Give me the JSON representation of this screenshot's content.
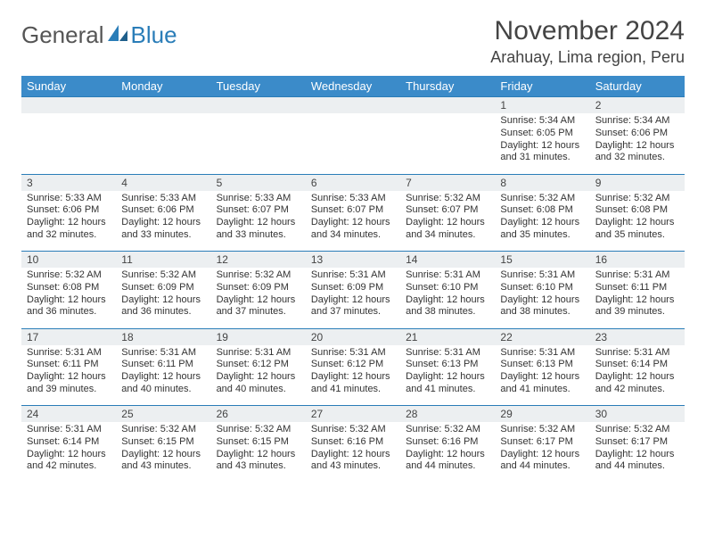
{
  "logo": {
    "text1": "General",
    "text2": "Blue"
  },
  "title": "November 2024",
  "location": "Arahuay, Lima region, Peru",
  "colors": {
    "header_bg": "#3b8bc9",
    "header_text": "#ffffff",
    "daynum_bg": "#eceff1",
    "border": "#2a7db8",
    "text": "#333333",
    "title_text": "#444444"
  },
  "weekdays": [
    "Sunday",
    "Monday",
    "Tuesday",
    "Wednesday",
    "Thursday",
    "Friday",
    "Saturday"
  ],
  "weeks": [
    [
      null,
      null,
      null,
      null,
      null,
      {
        "n": "1",
        "sr": "5:34 AM",
        "ss": "6:05 PM",
        "dl": "12 hours and 31 minutes."
      },
      {
        "n": "2",
        "sr": "5:34 AM",
        "ss": "6:06 PM",
        "dl": "12 hours and 32 minutes."
      }
    ],
    [
      {
        "n": "3",
        "sr": "5:33 AM",
        "ss": "6:06 PM",
        "dl": "12 hours and 32 minutes."
      },
      {
        "n": "4",
        "sr": "5:33 AM",
        "ss": "6:06 PM",
        "dl": "12 hours and 33 minutes."
      },
      {
        "n": "5",
        "sr": "5:33 AM",
        "ss": "6:07 PM",
        "dl": "12 hours and 33 minutes."
      },
      {
        "n": "6",
        "sr": "5:33 AM",
        "ss": "6:07 PM",
        "dl": "12 hours and 34 minutes."
      },
      {
        "n": "7",
        "sr": "5:32 AM",
        "ss": "6:07 PM",
        "dl": "12 hours and 34 minutes."
      },
      {
        "n": "8",
        "sr": "5:32 AM",
        "ss": "6:08 PM",
        "dl": "12 hours and 35 minutes."
      },
      {
        "n": "9",
        "sr": "5:32 AM",
        "ss": "6:08 PM",
        "dl": "12 hours and 35 minutes."
      }
    ],
    [
      {
        "n": "10",
        "sr": "5:32 AM",
        "ss": "6:08 PM",
        "dl": "12 hours and 36 minutes."
      },
      {
        "n": "11",
        "sr": "5:32 AM",
        "ss": "6:09 PM",
        "dl": "12 hours and 36 minutes."
      },
      {
        "n": "12",
        "sr": "5:32 AM",
        "ss": "6:09 PM",
        "dl": "12 hours and 37 minutes."
      },
      {
        "n": "13",
        "sr": "5:31 AM",
        "ss": "6:09 PM",
        "dl": "12 hours and 37 minutes."
      },
      {
        "n": "14",
        "sr": "5:31 AM",
        "ss": "6:10 PM",
        "dl": "12 hours and 38 minutes."
      },
      {
        "n": "15",
        "sr": "5:31 AM",
        "ss": "6:10 PM",
        "dl": "12 hours and 38 minutes."
      },
      {
        "n": "16",
        "sr": "5:31 AM",
        "ss": "6:11 PM",
        "dl": "12 hours and 39 minutes."
      }
    ],
    [
      {
        "n": "17",
        "sr": "5:31 AM",
        "ss": "6:11 PM",
        "dl": "12 hours and 39 minutes."
      },
      {
        "n": "18",
        "sr": "5:31 AM",
        "ss": "6:11 PM",
        "dl": "12 hours and 40 minutes."
      },
      {
        "n": "19",
        "sr": "5:31 AM",
        "ss": "6:12 PM",
        "dl": "12 hours and 40 minutes."
      },
      {
        "n": "20",
        "sr": "5:31 AM",
        "ss": "6:12 PM",
        "dl": "12 hours and 41 minutes."
      },
      {
        "n": "21",
        "sr": "5:31 AM",
        "ss": "6:13 PM",
        "dl": "12 hours and 41 minutes."
      },
      {
        "n": "22",
        "sr": "5:31 AM",
        "ss": "6:13 PM",
        "dl": "12 hours and 41 minutes."
      },
      {
        "n": "23",
        "sr": "5:31 AM",
        "ss": "6:14 PM",
        "dl": "12 hours and 42 minutes."
      }
    ],
    [
      {
        "n": "24",
        "sr": "5:31 AM",
        "ss": "6:14 PM",
        "dl": "12 hours and 42 minutes."
      },
      {
        "n": "25",
        "sr": "5:32 AM",
        "ss": "6:15 PM",
        "dl": "12 hours and 43 minutes."
      },
      {
        "n": "26",
        "sr": "5:32 AM",
        "ss": "6:15 PM",
        "dl": "12 hours and 43 minutes."
      },
      {
        "n": "27",
        "sr": "5:32 AM",
        "ss": "6:16 PM",
        "dl": "12 hours and 43 minutes."
      },
      {
        "n": "28",
        "sr": "5:32 AM",
        "ss": "6:16 PM",
        "dl": "12 hours and 44 minutes."
      },
      {
        "n": "29",
        "sr": "5:32 AM",
        "ss": "6:17 PM",
        "dl": "12 hours and 44 minutes."
      },
      {
        "n": "30",
        "sr": "5:32 AM",
        "ss": "6:17 PM",
        "dl": "12 hours and 44 minutes."
      }
    ]
  ]
}
